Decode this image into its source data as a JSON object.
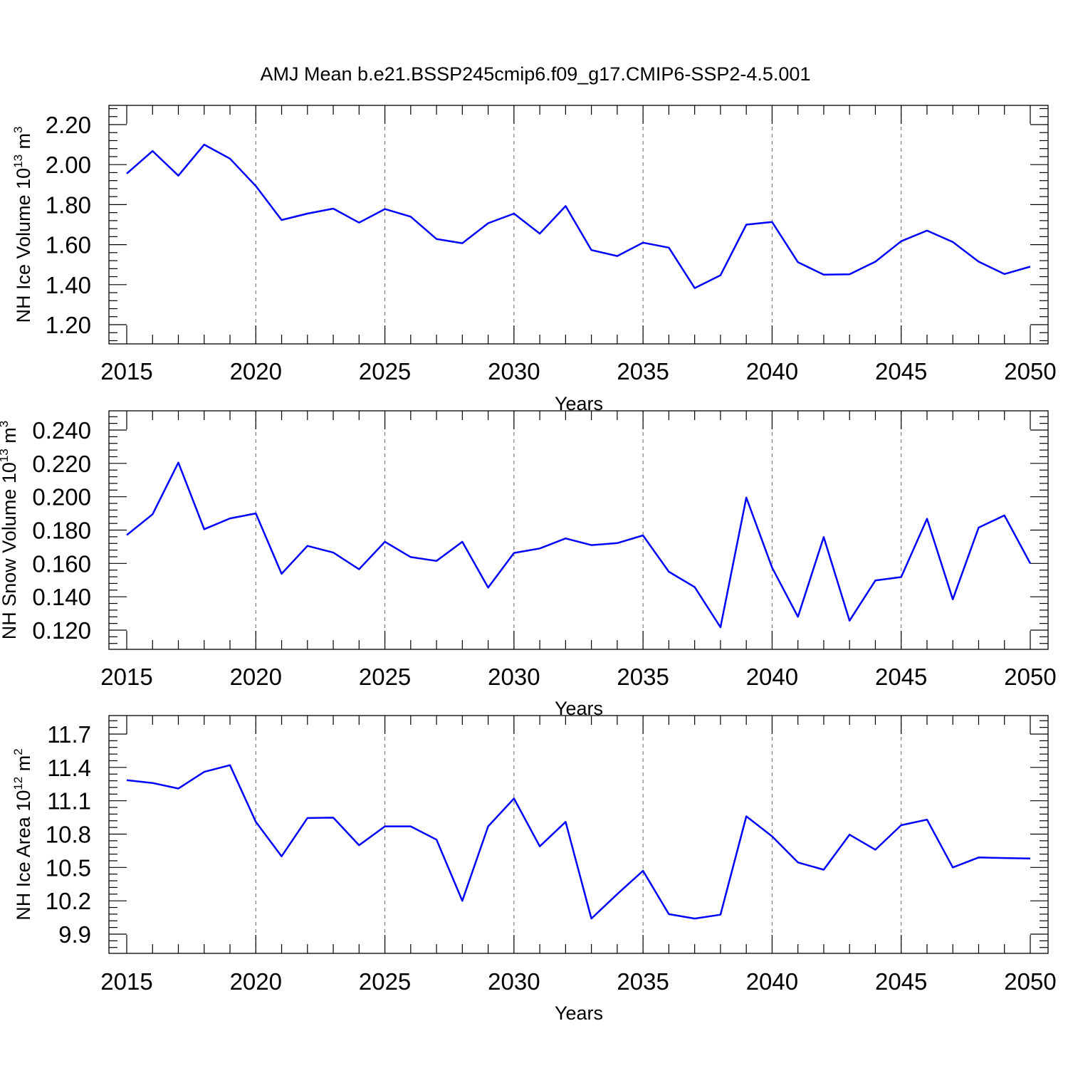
{
  "title": "AMJ Mean b.e21.BSSP245cmip6.f09_g17.CMIP6-SSP2-4.5.001",
  "colors": {
    "line": "#0000ff",
    "axis": "#000000",
    "grid": "#666666"
  },
  "chart_data": [
    {
      "type": "line",
      "ylabel_main": "NH Ice Volume 10",
      "ylabel_exp": "13",
      "ylabel_unit": "m",
      "ylabel_unit_exp": "3",
      "xlabel": "Years",
      "xlim": [
        2015,
        2050
      ],
      "ylim": [
        1.2,
        2.2
      ],
      "xticks": [
        2015,
        2020,
        2025,
        2030,
        2035,
        2040,
        2045,
        2050
      ],
      "yticks": [
        1.2,
        1.4,
        1.6,
        1.8,
        2.0,
        2.2
      ],
      "ytick_labels": [
        "1.20",
        "1.40",
        "1.60",
        "1.80",
        "2.00",
        "2.20"
      ],
      "grid": "vertical dashed at major x ticks",
      "x": [
        2015,
        2016,
        2017,
        2018,
        2019,
        2020,
        2021,
        2022,
        2023,
        2024,
        2025,
        2026,
        2027,
        2028,
        2029,
        2030,
        2031,
        2032,
        2033,
        2034,
        2035,
        2036,
        2037,
        2038,
        2039,
        2040,
        2041,
        2042,
        2043,
        2044,
        2045,
        2046,
        2047,
        2048,
        2049,
        2050
      ],
      "values": [
        1.955,
        2.068,
        1.945,
        2.1,
        2.03,
        1.893,
        1.723,
        1.755,
        1.78,
        1.71,
        1.778,
        1.74,
        1.628,
        1.607,
        1.707,
        1.755,
        1.655,
        1.793,
        1.573,
        1.543,
        1.61,
        1.585,
        1.383,
        1.447,
        1.7,
        1.713,
        1.512,
        1.45,
        1.452,
        1.515,
        1.617,
        1.67,
        1.613,
        1.515,
        1.453,
        1.49
      ]
    },
    {
      "type": "line",
      "ylabel_main": "NH Snow Volume 10",
      "ylabel_exp": "13",
      "ylabel_unit": "m",
      "ylabel_unit_exp": "3",
      "xlabel": "Years",
      "xlim": [
        2015,
        2050
      ],
      "ylim": [
        0.12,
        0.24
      ],
      "xticks": [
        2015,
        2020,
        2025,
        2030,
        2035,
        2040,
        2045,
        2050
      ],
      "yticks": [
        0.12,
        0.14,
        0.16,
        0.18,
        0.2,
        0.22,
        0.24
      ],
      "ytick_labels": [
        "0.120",
        "0.140",
        "0.160",
        "0.180",
        "0.200",
        "0.220",
        "0.240"
      ],
      "grid": "vertical dashed at major x ticks",
      "x": [
        2015,
        2016,
        2017,
        2018,
        2019,
        2020,
        2021,
        2022,
        2023,
        2024,
        2025,
        2026,
        2027,
        2028,
        2029,
        2030,
        2031,
        2032,
        2033,
        2034,
        2035,
        2036,
        2037,
        2038,
        2039,
        2040,
        2041,
        2042,
        2043,
        2044,
        2045,
        2046,
        2047,
        2048,
        2049,
        2050
      ],
      "values": [
        0.177,
        0.1895,
        0.2205,
        0.1805,
        0.187,
        0.19,
        0.1538,
        0.1705,
        0.1665,
        0.1565,
        0.173,
        0.1638,
        0.1615,
        0.173,
        0.1455,
        0.1663,
        0.169,
        0.175,
        0.171,
        0.1722,
        0.1768,
        0.155,
        0.1458,
        0.1217,
        0.1995,
        0.1575,
        0.128,
        0.1758,
        0.1257,
        0.1498,
        0.1518,
        0.1868,
        0.1385,
        0.1815,
        0.1888,
        0.16
      ]
    },
    {
      "type": "line",
      "ylabel_main": "NH Ice Area 10",
      "ylabel_exp": "12",
      "ylabel_unit": "m",
      "ylabel_unit_exp": "2",
      "xlabel": "Years",
      "xlim": [
        2015,
        2050
      ],
      "ylim": [
        9.9,
        11.7
      ],
      "xticks": [
        2015,
        2020,
        2025,
        2030,
        2035,
        2040,
        2045,
        2050
      ],
      "yticks": [
        9.9,
        10.2,
        10.5,
        10.8,
        11.1,
        11.4,
        11.7
      ],
      "ytick_labels": [
        "9.9",
        "10.2",
        "10.5",
        "10.8",
        "11.1",
        "11.4",
        "11.7"
      ],
      "grid": "vertical dashed at major x ticks",
      "x": [
        2015,
        2016,
        2017,
        2018,
        2019,
        2020,
        2021,
        2022,
        2023,
        2024,
        2025,
        2026,
        2027,
        2028,
        2029,
        2030,
        2031,
        2032,
        2033,
        2034,
        2035,
        2036,
        2037,
        2038,
        2039,
        2040,
        2041,
        2042,
        2043,
        2044,
        2045,
        2046,
        2047,
        2048,
        2049,
        2050
      ],
      "values": [
        11.285,
        11.26,
        11.21,
        11.36,
        11.42,
        10.91,
        10.6,
        10.945,
        10.948,
        10.7,
        10.87,
        10.87,
        10.75,
        10.2,
        10.87,
        11.12,
        10.69,
        10.91,
        10.04,
        10.26,
        10.47,
        10.08,
        10.04,
        10.075,
        10.96,
        10.78,
        10.545,
        10.48,
        10.795,
        10.66,
        10.88,
        10.93,
        10.5,
        10.59,
        10.585,
        10.58
      ]
    }
  ]
}
